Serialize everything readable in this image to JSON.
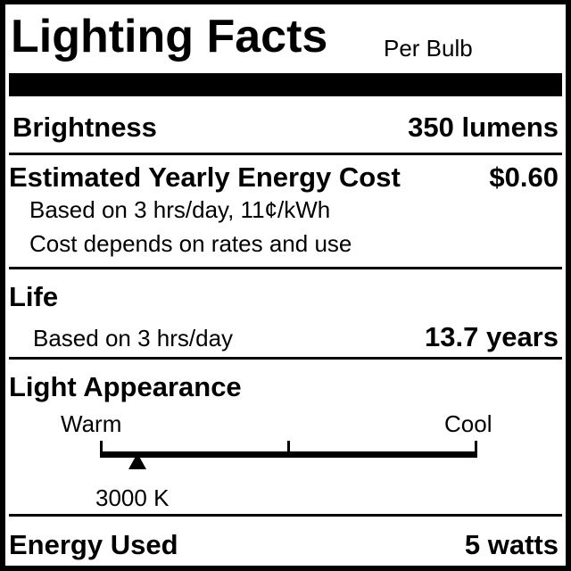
{
  "label": {
    "title": "Lighting Facts",
    "subtitle": "Per Bulb",
    "brightness": {
      "label": "Brightness",
      "value": "350 lumens"
    },
    "energy_cost": {
      "label": "Estimated Yearly Energy Cost",
      "value": "$0.60",
      "note1": "Based on 3 hrs/day, 11¢/kWh",
      "note2": "Cost depends on rates and use"
    },
    "life": {
      "label": "Life",
      "note": "Based on 3 hrs/day",
      "value": "13.7 years"
    },
    "light_appearance": {
      "label": "Light Appearance",
      "warm_label": "Warm",
      "cool_label": "Cool",
      "value": "3000 K",
      "marker_fraction": 0.1
    },
    "energy_used": {
      "label": "Energy Used",
      "value": "5 watts"
    }
  },
  "colors": {
    "ink": "#000000",
    "background": "#ffffff"
  }
}
